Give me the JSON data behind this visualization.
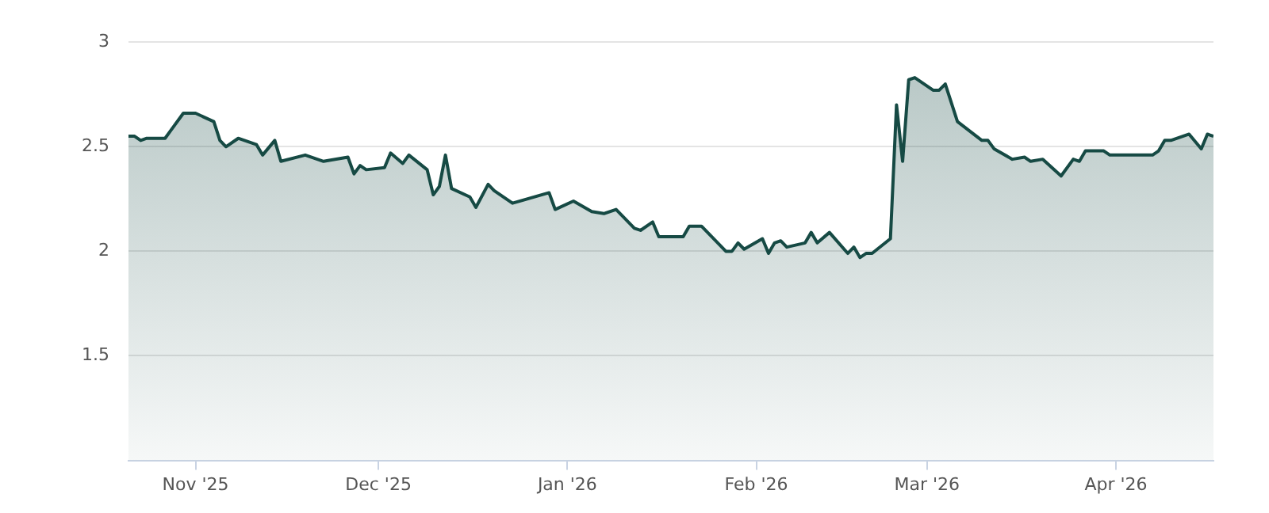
{
  "chart_data": {
    "type": "area",
    "x": [
      "2025-10-21",
      "2025-10-22",
      "2025-10-23",
      "2025-10-24",
      "2025-10-27",
      "2025-10-28",
      "2025-10-30",
      "2025-11-01",
      "2025-11-04",
      "2025-11-05",
      "2025-11-06",
      "2025-11-08",
      "2025-11-11",
      "2025-11-12",
      "2025-11-14",
      "2025-11-15",
      "2025-11-19",
      "2025-11-22",
      "2025-11-26",
      "2025-11-27",
      "2025-11-28",
      "2025-11-29",
      "2025-12-02",
      "2025-12-03",
      "2025-12-05",
      "2025-12-06",
      "2025-12-09",
      "2025-12-10",
      "2025-12-11",
      "2025-12-12",
      "2025-12-13",
      "2025-12-16",
      "2025-12-17",
      "2025-12-19",
      "2025-12-20",
      "2025-12-23",
      "2025-12-29",
      "2025-12-30",
      "2026-01-02",
      "2026-01-05",
      "2026-01-07",
      "2026-01-09",
      "2026-01-12",
      "2026-01-13",
      "2026-01-15",
      "2026-01-16",
      "2026-01-20",
      "2026-01-21",
      "2026-01-23",
      "2026-01-27",
      "2026-01-28",
      "2026-01-29",
      "2026-01-30",
      "2026-02-02",
      "2026-02-03",
      "2026-02-04",
      "2026-02-05",
      "2026-02-06",
      "2026-02-09",
      "2026-02-10",
      "2026-02-11",
      "2026-02-13",
      "2026-02-16",
      "2026-02-17",
      "2026-02-18",
      "2026-02-19",
      "2026-02-20",
      "2026-02-23",
      "2026-02-24",
      "2026-02-25",
      "2026-02-26",
      "2026-02-27",
      "2026-03-02",
      "2026-03-03",
      "2026-03-04",
      "2026-03-06",
      "2026-03-10",
      "2026-03-11",
      "2026-03-12",
      "2026-03-15",
      "2026-03-17",
      "2026-03-18",
      "2026-03-20",
      "2026-03-23",
      "2026-03-25",
      "2026-03-26",
      "2026-03-27",
      "2026-03-30",
      "2026-03-31",
      "2026-04-01",
      "2026-04-07",
      "2026-04-08",
      "2026-04-09",
      "2026-04-10",
      "2026-04-13",
      "2026-04-15",
      "2026-04-16",
      "2026-04-17"
    ],
    "series": [
      {
        "color": "#164a44",
        "values": [
          2.55,
          2.55,
          2.53,
          2.54,
          2.54,
          2.58,
          2.66,
          2.66,
          2.62,
          2.53,
          2.5,
          2.54,
          2.51,
          2.46,
          2.53,
          2.43,
          2.46,
          2.43,
          2.45,
          2.37,
          2.41,
          2.39,
          2.4,
          2.47,
          2.42,
          2.46,
          2.39,
          2.27,
          2.31,
          2.46,
          2.3,
          2.26,
          2.21,
          2.32,
          2.29,
          2.23,
          2.28,
          2.2,
          2.24,
          2.19,
          2.18,
          2.2,
          2.11,
          2.1,
          2.14,
          2.07,
          2.07,
          2.12,
          2.12,
          2.0,
          2.0,
          2.04,
          2.01,
          2.06,
          1.99,
          2.04,
          2.05,
          2.02,
          2.04,
          2.09,
          2.04,
          2.09,
          1.99,
          2.02,
          1.97,
          1.99,
          1.99,
          2.06,
          2.7,
          2.43,
          2.82,
          2.83,
          2.77,
          2.77,
          2.8,
          2.62,
          2.53,
          2.53,
          2.49,
          2.44,
          2.45,
          2.43,
          2.44,
          2.36,
          2.44,
          2.43,
          2.48,
          2.48,
          2.46,
          2.46,
          2.46,
          2.48,
          2.53,
          2.53,
          2.56,
          2.49,
          2.56,
          2.55
        ]
      }
    ],
    "xlim": [
      "2025-10-21",
      "2026-04-17"
    ],
    "xticks": [
      {
        "value": "2025-11-01",
        "label": "Nov '25"
      },
      {
        "value": "2025-12-01",
        "label": "Dec '25"
      },
      {
        "value": "2026-01-01",
        "label": "Jan '26"
      },
      {
        "value": "2026-02-01",
        "label": "Feb '26"
      },
      {
        "value": "2026-03-01",
        "label": "Mar '26"
      },
      {
        "value": "2026-04-01",
        "label": "Apr '26"
      }
    ],
    "ylim": [
      1,
      3
    ],
    "yticks": [
      1.5,
      2,
      2.5,
      3
    ],
    "grid": "y"
  }
}
